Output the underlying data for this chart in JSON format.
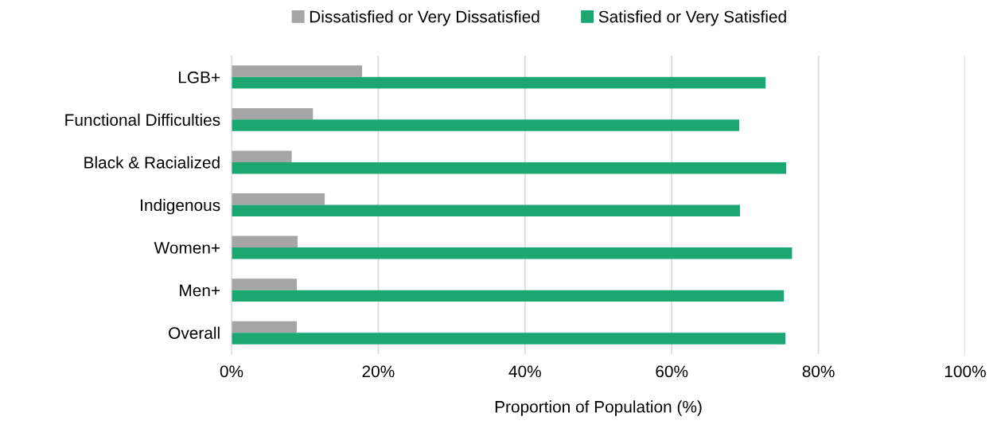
{
  "chart_data": {
    "type": "bar",
    "orientation": "horizontal",
    "categories": [
      "LGB+",
      "Functional Difficulties",
      "Black & Racialized",
      "Indigenous",
      "Women+",
      "Men+",
      "Overall"
    ],
    "series": [
      {
        "name": "Dissatisfied or Very Dissatisfied",
        "color": "#a5a5a5",
        "values": [
          17.8,
          11.1,
          8.2,
          12.7,
          9.0,
          8.9,
          8.9
        ]
      },
      {
        "name": "Satisfied or Very Satisfied",
        "color": "#1ba672",
        "values": [
          72.8,
          69.2,
          75.6,
          69.3,
          76.4,
          75.3,
          75.5
        ]
      }
    ],
    "xlabel": "Proportion of Population (%)",
    "xlim": [
      0,
      100
    ],
    "xticks": [
      {
        "value": 0,
        "label": "0%"
      },
      {
        "value": 20,
        "label": "20%"
      },
      {
        "value": 40,
        "label": "40%"
      },
      {
        "value": 60,
        "label": "60%"
      },
      {
        "value": 80,
        "label": "80%"
      },
      {
        "value": 100,
        "label": "100%"
      }
    ],
    "grid": "x",
    "legend": "top"
  }
}
